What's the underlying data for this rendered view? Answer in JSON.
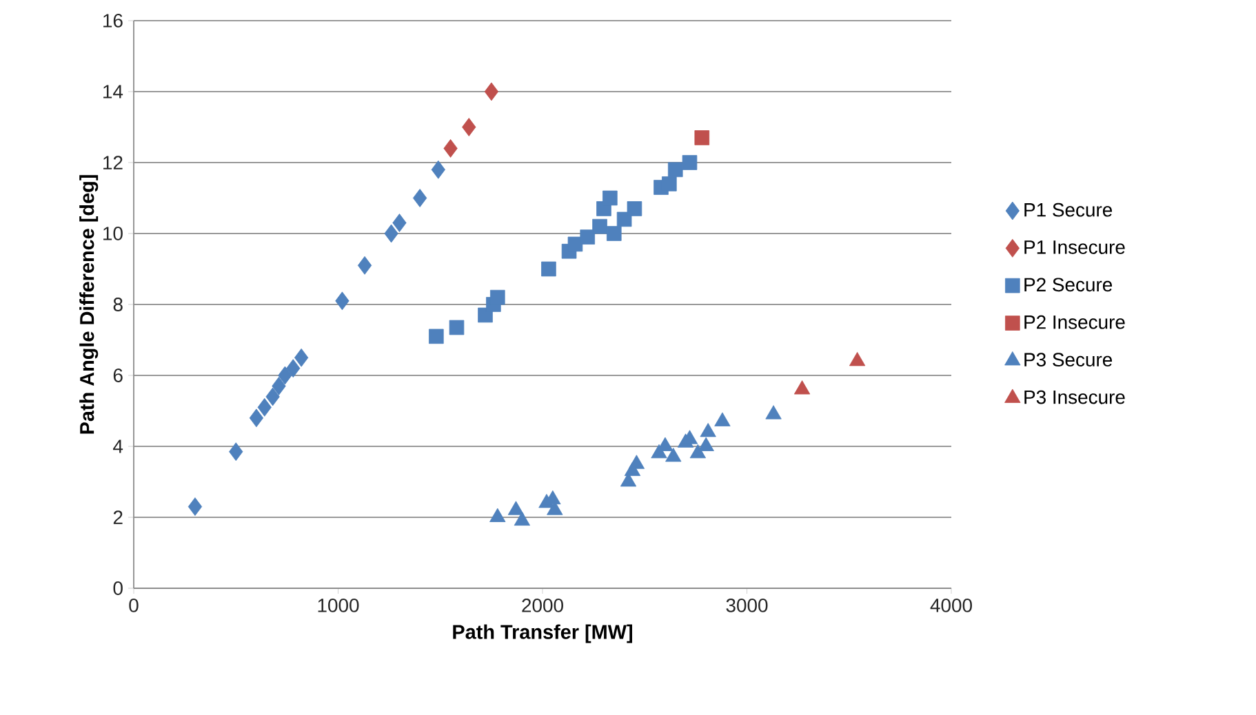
{
  "chart_data": {
    "type": "scatter",
    "xlabel": "Path Transfer [MW]",
    "ylabel": "Path Angle Difference [deg]",
    "xlim": [
      0,
      4000
    ],
    "xticks": [
      0,
      1000,
      2000,
      3000,
      4000
    ],
    "ylim": [
      0,
      16
    ],
    "yticks": [
      0,
      2,
      4,
      6,
      8,
      10,
      12,
      14,
      16
    ],
    "grid": "y",
    "legend": "right",
    "series": [
      {
        "name": "P1 Secure",
        "color": "#4f81bd",
        "marker": "diamond",
        "x": [
          300,
          500,
          600,
          640,
          680,
          710,
          740,
          780,
          820,
          1020,
          1130,
          1260,
          1300,
          1400,
          1490
        ],
        "values": [
          2.3,
          3.85,
          4.8,
          5.1,
          5.4,
          5.7,
          6.0,
          6.2,
          6.5,
          8.1,
          9.1,
          10.0,
          10.3,
          11.0,
          11.8
        ]
      },
      {
        "name": "P1 Insecure",
        "color": "#c0504d",
        "marker": "diamond",
        "x": [
          1550,
          1640,
          1750
        ],
        "values": [
          12.4,
          13.0,
          14.0
        ]
      },
      {
        "name": "P2 Secure",
        "color": "#4f81bd",
        "marker": "square",
        "x": [
          1480,
          1580,
          1720,
          1760,
          1780,
          2030,
          2130,
          2160,
          2220,
          2280,
          2300,
          2330,
          2350,
          2400,
          2450,
          2580,
          2620,
          2650,
          2720
        ],
        "values": [
          7.1,
          7.35,
          7.7,
          8.0,
          8.2,
          9.0,
          9.5,
          9.7,
          9.9,
          10.2,
          10.7,
          11.0,
          10.0,
          10.4,
          10.7,
          11.3,
          11.4,
          11.8,
          12.0
        ]
      },
      {
        "name": "P2 Insecure",
        "color": "#c0504d",
        "marker": "square",
        "x": [
          2780
        ],
        "values": [
          12.7
        ]
      },
      {
        "name": "P3 Secure",
        "color": "#4f81bd",
        "marker": "triangle",
        "x": [
          1780,
          1870,
          1900,
          2020,
          2050,
          2060,
          2420,
          2440,
          2460,
          2570,
          2600,
          2640,
          2700,
          2720,
          2760,
          2800,
          2810,
          2880,
          3130
        ],
        "values": [
          2.0,
          2.2,
          1.9,
          2.4,
          2.5,
          2.2,
          3.0,
          3.3,
          3.5,
          3.8,
          4.0,
          3.7,
          4.1,
          4.2,
          3.8,
          4.0,
          4.4,
          4.7,
          4.9
        ]
      },
      {
        "name": "P3 Insecure",
        "color": "#c0504d",
        "marker": "triangle",
        "x": [
          3270,
          3540
        ],
        "values": [
          5.6,
          6.4
        ]
      }
    ]
  }
}
